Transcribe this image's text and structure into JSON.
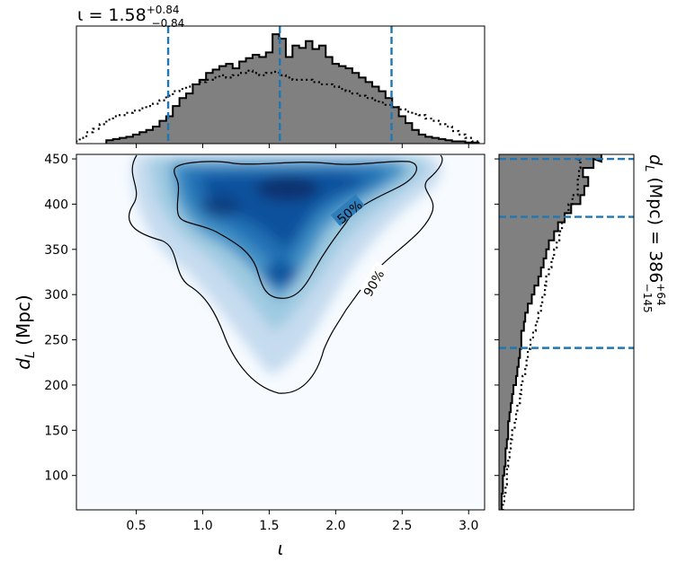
{
  "chart_data": {
    "type": "corner",
    "title_top": "ι = 1.58",
    "title_top_sup": "+0.84",
    "title_top_sub": "−0.84",
    "title_right": "d",
    "title_right_sub": "L",
    "title_right_rest": " (Mpc) = 386",
    "title_right_sup": "+64",
    "title_right_sub2": "−145",
    "xlabel": "ι",
    "ylabel_main": "d",
    "ylabel_sub": "L",
    "ylabel_rest": " (Mpc)",
    "xlim": [
      0.05,
      3.12
    ],
    "ylim": [
      62,
      455
    ],
    "x_ticks": [
      0.5,
      1.0,
      1.5,
      2.0,
      2.5,
      3.0
    ],
    "x_tick_labels": [
      "0.5",
      "1.0",
      "1.5",
      "2.0",
      "2.5",
      "3.0"
    ],
    "y_ticks": [
      100,
      150,
      200,
      250,
      300,
      350,
      400,
      450
    ],
    "y_tick_labels": [
      "100",
      "150",
      "200",
      "250",
      "300",
      "350",
      "400",
      "450"
    ],
    "iota_quantiles": [
      0.74,
      1.58,
      2.42
    ],
    "dl_quantiles": [
      241,
      386,
      450
    ],
    "contour_levels": [
      "50%",
      "90%"
    ],
    "colormap": "Blues",
    "hist_fill_color": "#808080",
    "quantile_color": "#1f77b4",
    "iota_posterior": {
      "x": [
        0.3,
        0.35,
        0.4,
        0.45,
        0.5,
        0.55,
        0.6,
        0.65,
        0.7,
        0.75,
        0.8,
        0.85,
        0.9,
        0.95,
        1.0,
        1.05,
        1.1,
        1.15,
        1.2,
        1.25,
        1.3,
        1.35,
        1.4,
        1.45,
        1.5,
        1.55,
        1.6,
        1.65,
        1.7,
        1.75,
        1.8,
        1.85,
        1.9,
        1.95,
        2.0,
        2.05,
        2.1,
        2.15,
        2.2,
        2.25,
        2.3,
        2.35,
        2.4,
        2.45,
        2.5,
        2.55,
        2.6,
        2.65,
        2.7,
        2.75,
        2.8,
        2.85,
        2.9,
        2.95,
        3.0,
        3.05
      ],
      "counts": [
        0.03,
        0.04,
        0.05,
        0.06,
        0.08,
        0.1,
        0.12,
        0.15,
        0.2,
        0.24,
        0.33,
        0.4,
        0.44,
        0.52,
        0.56,
        0.62,
        0.65,
        0.68,
        0.7,
        0.66,
        0.72,
        0.75,
        0.78,
        0.76,
        0.8,
        0.96,
        0.92,
        0.76,
        0.86,
        0.84,
        0.9,
        0.83,
        0.86,
        0.76,
        0.7,
        0.68,
        0.66,
        0.62,
        0.58,
        0.54,
        0.5,
        0.46,
        0.4,
        0.32,
        0.24,
        0.18,
        0.12,
        0.08,
        0.06,
        0.05,
        0.04,
        0.03,
        0.02,
        0.02,
        0.01,
        0.01
      ]
    },
    "iota_prior": {
      "x": [
        0.05,
        0.1,
        0.15,
        0.2,
        0.25,
        0.3,
        0.35,
        0.4,
        0.45,
        0.5,
        0.55,
        0.6,
        0.65,
        0.7,
        0.75,
        0.8,
        0.85,
        0.9,
        0.95,
        1.0,
        1.05,
        1.1,
        1.15,
        1.2,
        1.25,
        1.3,
        1.35,
        1.4,
        1.45,
        1.5,
        1.55,
        1.6,
        1.65,
        1.7,
        1.75,
        1.8,
        1.85,
        1.9,
        1.95,
        2.0,
        2.05,
        2.1,
        2.15,
        2.2,
        2.25,
        2.3,
        2.35,
        2.4,
        2.45,
        2.5,
        2.55,
        2.6,
        2.65,
        2.7,
        2.75,
        2.8,
        2.85,
        2.9,
        2.95,
        3.0,
        3.05
      ],
      "counts": [
        0.02,
        0.05,
        0.1,
        0.13,
        0.17,
        0.21,
        0.24,
        0.25,
        0.27,
        0.29,
        0.31,
        0.33,
        0.35,
        0.38,
        0.42,
        0.46,
        0.48,
        0.5,
        0.52,
        0.54,
        0.56,
        0.58,
        0.6,
        0.58,
        0.6,
        0.62,
        0.64,
        0.62,
        0.6,
        0.62,
        0.63,
        0.6,
        0.58,
        0.56,
        0.56,
        0.56,
        0.54,
        0.52,
        0.52,
        0.5,
        0.48,
        0.46,
        0.44,
        0.42,
        0.4,
        0.38,
        0.36,
        0.34,
        0.32,
        0.3,
        0.28,
        0.26,
        0.25,
        0.22,
        0.2,
        0.17,
        0.15,
        0.11,
        0.08,
        0.05,
        0.02
      ]
    },
    "dl_posterior": {
      "d": [
        65,
        75,
        85,
        95,
        105,
        115,
        125,
        135,
        145,
        155,
        165,
        175,
        185,
        195,
        205,
        215,
        225,
        235,
        245,
        255,
        265,
        275,
        285,
        295,
        305,
        315,
        325,
        335,
        345,
        355,
        365,
        375,
        385,
        395,
        405,
        415,
        425,
        435,
        445,
        452
      ],
      "counts": [
        0.02,
        0.02,
        0.03,
        0.03,
        0.04,
        0.05,
        0.05,
        0.06,
        0.07,
        0.07,
        0.08,
        0.09,
        0.1,
        0.11,
        0.13,
        0.14,
        0.15,
        0.16,
        0.17,
        0.17,
        0.19,
        0.2,
        0.22,
        0.25,
        0.27,
        0.3,
        0.32,
        0.34,
        0.36,
        0.38,
        0.42,
        0.45,
        0.5,
        0.55,
        0.62,
        0.65,
        0.68,
        0.64,
        0.72,
        0.78
      ]
    },
    "dl_prior": {
      "d": [
        65,
        75,
        85,
        95,
        105,
        115,
        125,
        135,
        145,
        155,
        165,
        175,
        185,
        195,
        205,
        215,
        225,
        235,
        245,
        255,
        265,
        275,
        285,
        295,
        305,
        315,
        325,
        335,
        345,
        355,
        365,
        375,
        385,
        395,
        405,
        415,
        425,
        435,
        445,
        452
      ],
      "counts": [
        0.03,
        0.04,
        0.05,
        0.06,
        0.06,
        0.07,
        0.08,
        0.09,
        0.1,
        0.12,
        0.13,
        0.14,
        0.16,
        0.17,
        0.18,
        0.2,
        0.21,
        0.22,
        0.24,
        0.26,
        0.28,
        0.3,
        0.32,
        0.33,
        0.35,
        0.36,
        0.38,
        0.4,
        0.42,
        0.44,
        0.46,
        0.48,
        0.5,
        0.53,
        0.56,
        0.6,
        0.6,
        0.61,
        0.62,
        0.6
      ]
    }
  }
}
